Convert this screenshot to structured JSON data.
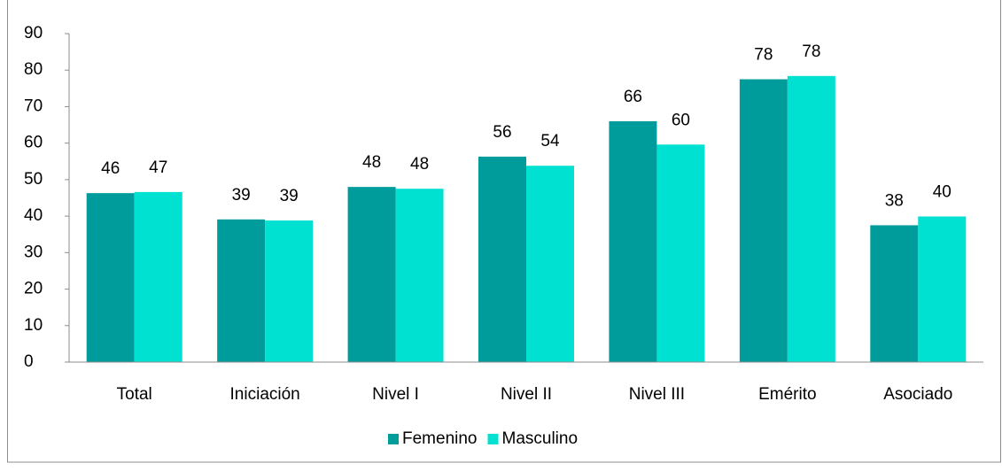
{
  "chart_data": {
    "type": "bar",
    "categories": [
      "Total",
      "Iniciación",
      "Nivel I",
      "Nivel II",
      "Nivel III",
      "Emérito",
      "Asociado"
    ],
    "series": [
      {
        "name": "Femenino",
        "color": "#009c9c",
        "values": [
          46.3,
          39.1,
          48.0,
          56.3,
          66.0,
          77.5,
          37.5
        ],
        "value_labels": [
          "46",
          "39",
          "48",
          "56",
          "66",
          "78",
          "38"
        ]
      },
      {
        "name": "Masculino",
        "color": "#00e1d2",
        "values": [
          46.6,
          38.8,
          47.5,
          53.8,
          59.6,
          78.4,
          39.9
        ],
        "value_labels": [
          "47",
          "39",
          "48",
          "54",
          "60",
          "78",
          "40"
        ]
      }
    ],
    "ylim": [
      0,
      90
    ],
    "yticks": [
      0,
      10,
      20,
      30,
      40,
      50,
      60,
      70,
      80,
      90
    ],
    "grid": false,
    "legend": "bottom"
  }
}
